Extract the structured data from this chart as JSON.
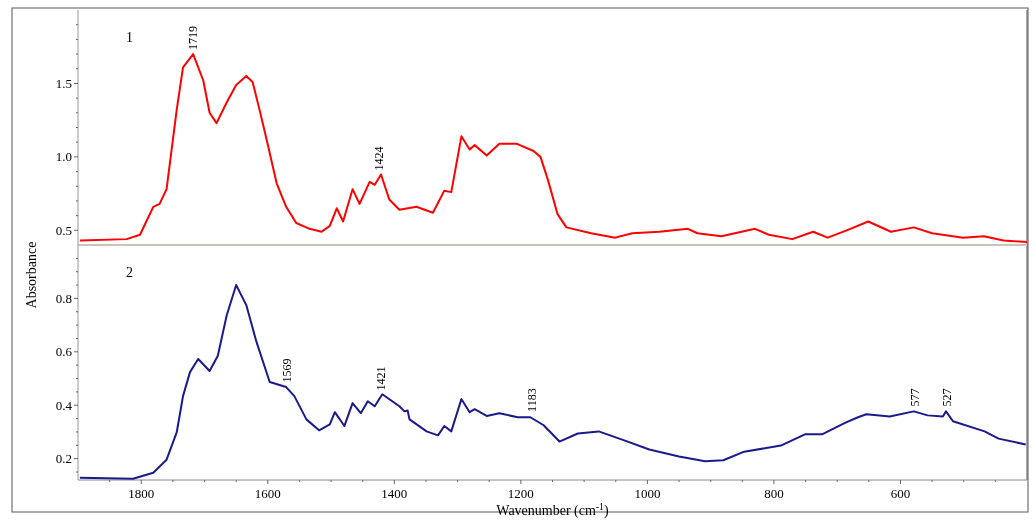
{
  "chart_data": [
    {
      "type": "line",
      "xlim": [
        1900,
        400
      ],
      "ylim": [
        0.4,
        2.0
      ],
      "tick_labels": "y",
      "yticks": [
        0.5,
        {
          "value": 0.6,
          "label": null
        },
        {
          "value": 0.7,
          "label": null
        },
        {
          "value": 0.8,
          "label": null
        },
        {
          "value": 0.9,
          "label": null
        },
        {
          "value": 1.0,
          "label": "1.0"
        },
        {
          "value": 1.1,
          "label": null
        },
        {
          "value": 1.2,
          "label": null
        },
        {
          "value": 1.3,
          "label": null
        },
        {
          "value": 1.4,
          "label": null
        },
        1.5,
        {
          "value": 1.6,
          "label": null
        },
        {
          "value": 1.7,
          "label": null
        },
        {
          "value": 1.8,
          "label": null
        },
        {
          "value": 1.9,
          "label": null
        }
      ],
      "annotations": [
        "1",
        {
          "text": "1719",
          "x": 1719,
          "y": 1.7
        },
        {
          "text": "1424",
          "x": 1424,
          "y": 0.88
        }
      ],
      "series": [
        {
          "color": "#ff0000",
          "x": [
            1897,
            1823,
            1802,
            1781,
            1771,
            1760,
            1744,
            1734,
            1718,
            1702,
            1692,
            1681,
            1665,
            1650,
            1634,
            1624,
            1613,
            1602,
            1586,
            1571,
            1555,
            1534,
            1515,
            1502,
            1491,
            1481,
            1466,
            1455,
            1439,
            1431,
            1421,
            1408,
            1392,
            1365,
            1339,
            1321,
            1310,
            1294,
            1281,
            1273,
            1254,
            1234,
            1207,
            1180,
            1169,
            1157,
            1142,
            1128,
            1089,
            1051,
            1024,
            981,
            936,
            921,
            883,
            830,
            808,
            771,
            738,
            715,
            685,
            651,
            615,
            579,
            550,
            501,
            468,
            437,
            400
          ],
          "values": [
            0.43,
            0.44,
            0.47,
            0.66,
            0.68,
            0.78,
            1.32,
            1.61,
            1.7,
            1.52,
            1.3,
            1.23,
            1.37,
            1.49,
            1.55,
            1.51,
            1.32,
            1.12,
            0.82,
            0.66,
            0.55,
            0.51,
            0.49,
            0.53,
            0.65,
            0.56,
            0.78,
            0.68,
            0.83,
            0.81,
            0.88,
            0.71,
            0.64,
            0.66,
            0.62,
            0.77,
            0.76,
            1.14,
            1.05,
            1.08,
            1.01,
            1.09,
            1.09,
            1.04,
            1.0,
            0.84,
            0.61,
            0.52,
            0.48,
            0.45,
            0.48,
            0.49,
            0.51,
            0.48,
            0.46,
            0.51,
            0.47,
            0.44,
            0.49,
            0.45,
            0.5,
            0.56,
            0.49,
            0.52,
            0.48,
            0.45,
            0.46,
            0.43,
            0.42
          ]
        }
      ]
    },
    {
      "type": "line",
      "xlim": [
        1900,
        400
      ],
      "ylim": [
        0.12,
        1.0
      ],
      "xlabel": "Wavenumber (cm$^{-1}$)",
      "ylabel": "Absorbance",
      "xticks": [
        {
          "value": 1850,
          "label": null
        },
        1800,
        {
          "value": 1750,
          "label": null
        },
        {
          "value": 1700,
          "label": null
        },
        {
          "value": 1650,
          "label": null
        },
        1600,
        {
          "value": 1550,
          "label": null
        },
        {
          "value": 1500,
          "label": null
        },
        {
          "value": 1450,
          "label": null
        },
        1400,
        {
          "value": 1350,
          "label": null
        },
        {
          "value": 1300,
          "label": null
        },
        {
          "value": 1250,
          "label": null
        },
        1200,
        {
          "value": 1150,
          "label": null
        },
        {
          "value": 1100,
          "label": null
        },
        {
          "value": 1050,
          "label": null
        },
        1000,
        {
          "value": 950,
          "label": null
        },
        {
          "value": 900,
          "label": null
        },
        {
          "value": 850,
          "label": null
        },
        800,
        {
          "value": 750,
          "label": null
        },
        {
          "value": 700,
          "label": null
        },
        {
          "value": 650,
          "label": null
        },
        600,
        {
          "value": 550,
          "label": null
        },
        {
          "value": 500,
          "label": null
        },
        {
          "value": 450,
          "label": null
        }
      ],
      "yticks": [
        {
          "value": 0.15,
          "label": null
        },
        0.2,
        {
          "value": 0.25,
          "label": null
        },
        {
          "value": 0.3,
          "label": null
        },
        {
          "value": 0.35,
          "label": null
        },
        0.4,
        {
          "value": 0.45,
          "label": null
        },
        {
          "value": 0.5,
          "label": null
        },
        {
          "value": 0.55,
          "label": null
        },
        0.6,
        {
          "value": 0.65,
          "label": null
        },
        {
          "value": 0.7,
          "label": null
        },
        {
          "value": 0.75,
          "label": null
        },
        0.8,
        {
          "value": 0.85,
          "label": null
        },
        {
          "value": 0.9,
          "label": null
        },
        {
          "value": 0.95,
          "label": null
        }
      ],
      "annotations": [
        "2",
        {
          "text": "1569",
          "x": 1569,
          "y": 0.47
        },
        {
          "text": "1421",
          "x": 1421,
          "y": 0.44
        },
        {
          "text": "1183",
          "x": 1183,
          "y": 0.36
        },
        {
          "text": "577",
          "x": 577,
          "y": 0.38
        },
        {
          "text": "527",
          "x": 527,
          "y": 0.38
        }
      ],
      "series": [
        {
          "color": "#1a1a8c",
          "x": [
            1897,
            1813,
            1781,
            1760,
            1744,
            1734,
            1723,
            1710,
            1692,
            1679,
            1665,
            1650,
            1634,
            1618,
            1597,
            1571,
            1558,
            1539,
            1519,
            1502,
            1494,
            1479,
            1466,
            1453,
            1442,
            1431,
            1419,
            1392,
            1384,
            1379,
            1376,
            1349,
            1331,
            1321,
            1310,
            1294,
            1281,
            1273,
            1254,
            1234,
            1205,
            1185,
            1164,
            1139,
            1110,
            1077,
            1041,
            997,
            950,
            909,
            880,
            847,
            789,
            751,
            724,
            686,
            667,
            654,
            617,
            579,
            557,
            533,
            528,
            517,
            467,
            445,
            402
          ],
          "values": [
            0.128,
            0.125,
            0.147,
            0.196,
            0.298,
            0.434,
            0.524,
            0.573,
            0.528,
            0.585,
            0.736,
            0.85,
            0.775,
            0.638,
            0.487,
            0.468,
            0.434,
            0.347,
            0.306,
            0.328,
            0.374,
            0.322,
            0.408,
            0.37,
            0.415,
            0.396,
            0.441,
            0.396,
            0.377,
            0.38,
            0.347,
            0.302,
            0.287,
            0.322,
            0.302,
            0.423,
            0.374,
            0.385,
            0.36,
            0.37,
            0.355,
            0.355,
            0.325,
            0.264,
            0.294,
            0.302,
            0.272,
            0.234,
            0.208,
            0.19,
            0.194,
            0.226,
            0.249,
            0.291,
            0.291,
            0.336,
            0.355,
            0.366,
            0.358,
            0.377,
            0.362,
            0.358,
            0.377,
            0.34,
            0.302,
            0.275,
            0.253
          ]
        }
      ]
    }
  ]
}
